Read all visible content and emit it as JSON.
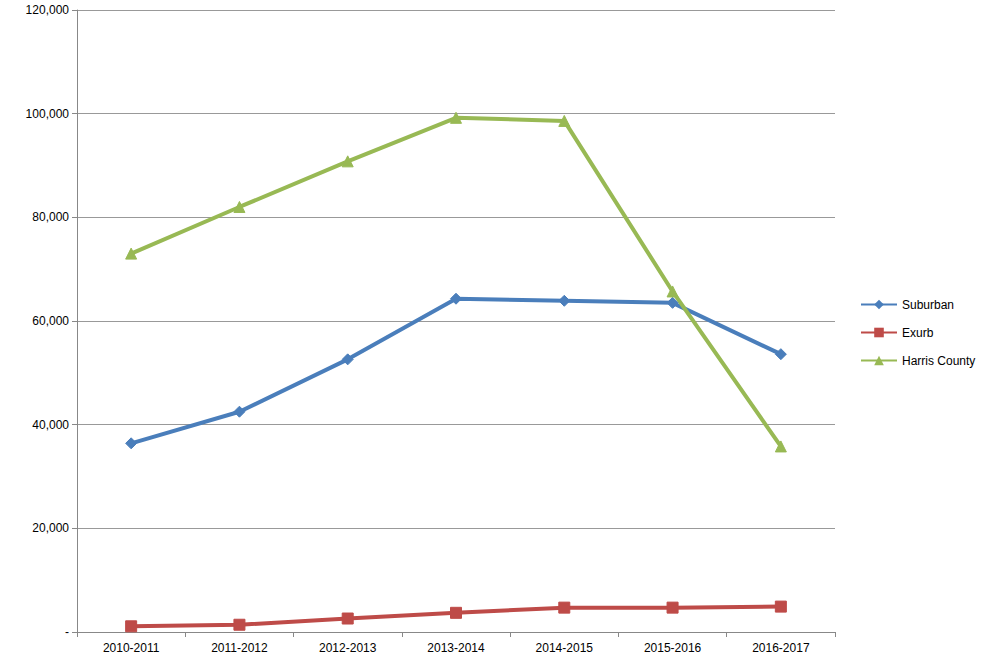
{
  "chart_data": {
    "type": "line",
    "categories": [
      "2010-2011",
      "2011-2012",
      "2012-2013",
      "2013-2014",
      "2014-2015",
      "2015-2016",
      "2016-2017"
    ],
    "series": [
      {
        "name": "Suburban",
        "color": "#4a7ebb",
        "marker": "diamond",
        "values": [
          36400,
          42500,
          52600,
          64300,
          63900,
          63500,
          53600
        ]
      },
      {
        "name": "Exurb",
        "color": "#be4b48",
        "marker": "square",
        "values": [
          1100,
          1400,
          2600,
          3700,
          4700,
          4700,
          4900
        ]
      },
      {
        "name": "Harris County",
        "color": "#98b954",
        "marker": "triangle",
        "values": [
          73000,
          82000,
          90800,
          99200,
          98600,
          65700,
          35800
        ]
      }
    ],
    "ylim": [
      0,
      120000
    ],
    "yticks": [
      {
        "value": 0,
        "label": "-"
      },
      {
        "value": 20000,
        "label": "20,000"
      },
      {
        "value": 40000,
        "label": "40,000"
      },
      {
        "value": 60000,
        "label": "60,000"
      },
      {
        "value": 80000,
        "label": "80,000"
      },
      {
        "value": 100000,
        "label": "100,000"
      },
      {
        "value": 120000,
        "label": "120,000"
      }
    ],
    "grid": true,
    "legend": "right"
  }
}
